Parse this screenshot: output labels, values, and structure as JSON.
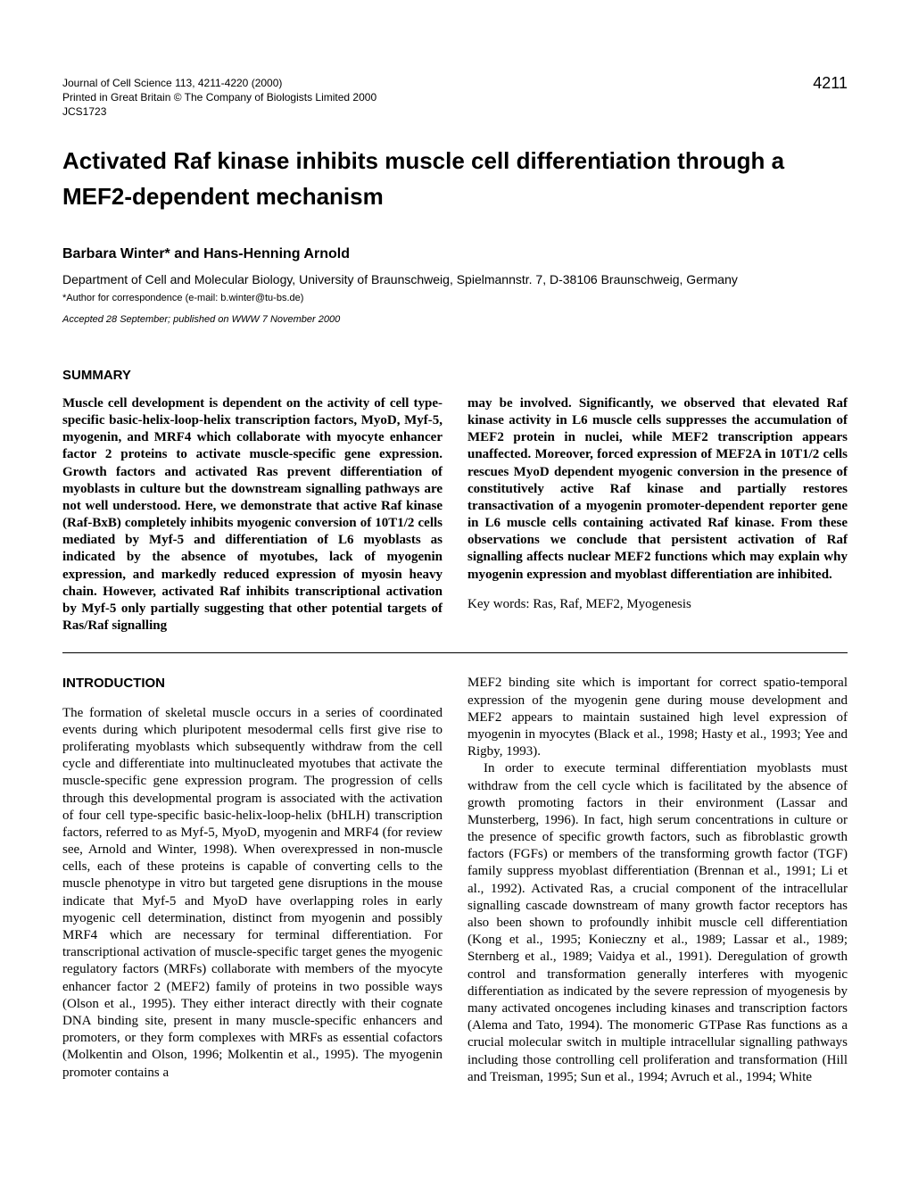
{
  "header": {
    "journal_line": "Journal of Cell Science 113, 4211-4220 (2000)",
    "printed_line": "Printed in Great Britain © The Company of Biologists Limited 2000",
    "code": "JCS1723",
    "page_number": "4211"
  },
  "title": "Activated Raf kinase inhibits muscle cell differentiation through a MEF2-dependent mechanism",
  "authors": "Barbara Winter* and Hans-Henning Arnold",
  "affiliation": "Department of Cell and Molecular Biology, University of Braunschweig, Spielmannstr. 7, D-38106 Braunschweig, Germany",
  "correspondence": "*Author for correspondence (e-mail: b.winter@tu-bs.de)",
  "accepted": "Accepted 28 September; published on WWW 7 November 2000",
  "summary_heading": "SUMMARY",
  "summary_left": "Muscle cell development is dependent on the activity of cell type-specific basic-helix-loop-helix transcription factors, MyoD, Myf-5, myogenin, and MRF4 which collaborate with myocyte enhancer factor 2 proteins to activate muscle-specific gene expression. Growth factors and activated Ras prevent differentiation of myoblasts in culture but the downstream signalling pathways are not well understood. Here, we demonstrate that active Raf kinase (Raf-BxB) completely inhibits myogenic conversion of 10T1/2 cells mediated by Myf-5 and differentiation of L6 myoblasts as indicated by the absence of myotubes, lack of myogenin expression, and markedly reduced expression of myosin heavy chain. However, activated Raf inhibits transcriptional activation by Myf-5 only partially suggesting that other potential targets of Ras/Raf signalling",
  "summary_right": "may be involved. Significantly, we observed that elevated Raf kinase activity in L6 muscle cells suppresses the accumulation of MEF2 protein in nuclei, while MEF2 transcription appears unaffected. Moreover, forced expression of MEF2A in 10T1/2 cells rescues MyoD dependent myogenic conversion in the presence of constitutively active Raf kinase and partially restores transactivation of a myogenin promoter-dependent reporter gene in L6 muscle cells containing activated Raf kinase. From these observations we conclude that persistent activation of Raf signalling affects nuclear MEF2 functions which may explain why myogenin expression and myoblast differentiation are inhibited.",
  "keywords": "Key words: Ras, Raf, MEF2, Myogenesis",
  "intro_heading": "INTRODUCTION",
  "intro_left": "The formation of skeletal muscle occurs in a series of coordinated events during which pluripotent mesodermal cells first give rise to proliferating myoblasts which subsequently withdraw from the cell cycle and differentiate into multinucleated myotubes that activate the muscle-specific gene expression program. The progression of cells through this developmental program is associated with the activation of four cell type-specific basic-helix-loop-helix (bHLH) transcription factors, referred to as Myf-5, MyoD, myogenin and MRF4 (for review see, Arnold and Winter, 1998). When overexpressed in non-muscle cells, each of these proteins is capable of converting cells to the muscle phenotype in vitro but targeted gene disruptions in the mouse indicate that Myf-5 and MyoD have overlapping roles in early myogenic cell determination, distinct from myogenin and possibly MRF4 which are necessary for terminal differentiation. For transcriptional activation of muscle-specific target genes the myogenic regulatory factors (MRFs) collaborate with members of the myocyte enhancer factor 2 (MEF2) family of proteins in two possible ways (Olson et al., 1995). They either interact directly with their cognate DNA binding site, present in many muscle-specific enhancers and promoters, or they form complexes with MRFs as essential cofactors (Molkentin and Olson, 1996; Molkentin et al., 1995). The myogenin promoter contains a",
  "intro_right_p1": "MEF2 binding site which is important for correct spatio-temporal expression of the myogenin gene during mouse development and MEF2 appears to maintain sustained high level expression of myogenin in myocytes (Black et al., 1998; Hasty et al., 1993; Yee and Rigby, 1993).",
  "intro_right_p2": "In order to execute terminal differentiation myoblasts must withdraw from the cell cycle which is facilitated by the absence of growth promoting factors in their environment (Lassar and Munsterberg, 1996). In fact, high serum concentrations in culture or the presence of specific growth factors, such as fibroblastic growth factors (FGFs) or members of the transforming growth factor (TGF) family suppress myoblast differentiation (Brennan et al., 1991; Li et al., 1992). Activated Ras, a crucial component of the intracellular signalling cascade downstream of many growth factor receptors has also been shown to profoundly inhibit muscle cell differentiation (Kong et al., 1995; Konieczny et al., 1989; Lassar et al., 1989; Sternberg et al., 1989; Vaidya et al., 1991). Deregulation of growth control and transformation generally interferes with myogenic differentiation as indicated by the severe repression of myogenesis by many activated oncogenes including kinases and transcription factors (Alema and Tato, 1994). The monomeric GTPase Ras functions as a crucial molecular switch in multiple intracellular signalling pathways including those controlling cell proliferation and transformation (Hill and Treisman, 1995; Sun et al., 1994; Avruch et al., 1994; White"
}
